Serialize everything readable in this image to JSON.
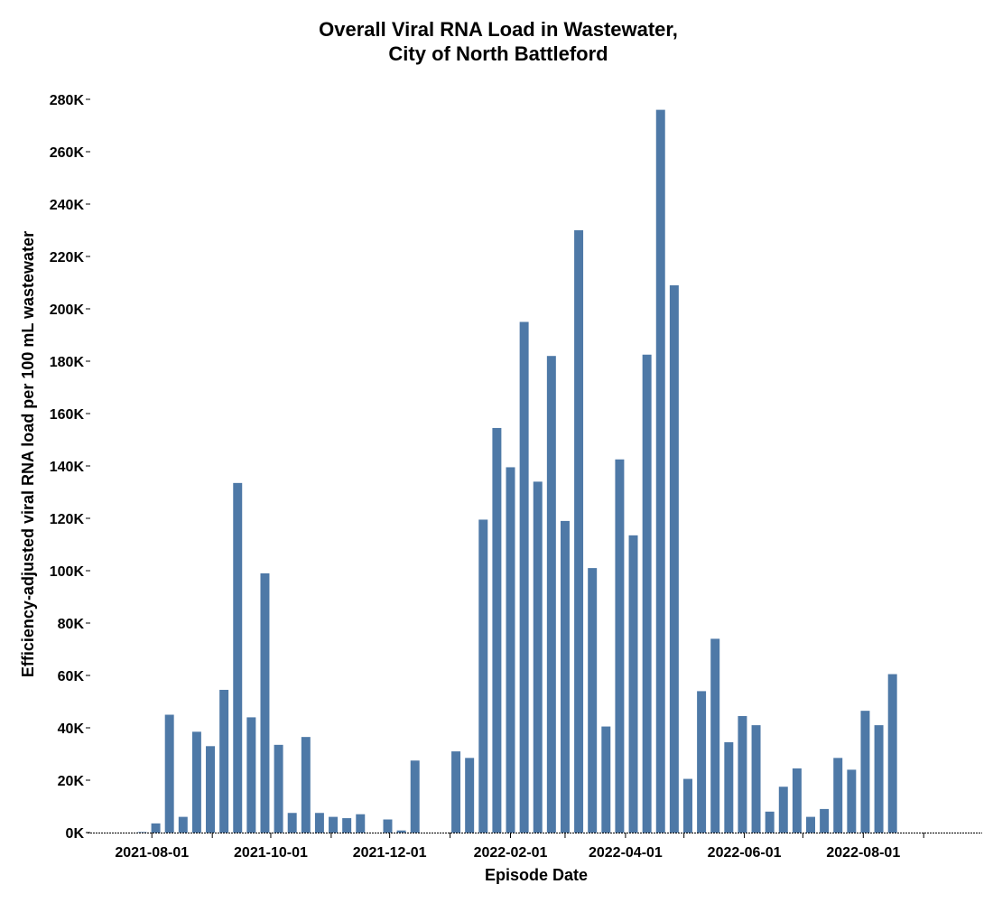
{
  "chart_data": {
    "type": "bar",
    "title": [
      "Overall Viral RNA Load in Wastewater,",
      "City of North Battleford"
    ],
    "xlabel": "Episode Date",
    "ylabel": "Efficiency-adjusted viral RNA load per 100 mL wastewater",
    "ylim": [
      0,
      280000
    ],
    "yticks": [
      {
        "value": 0,
        "label": "0K"
      },
      {
        "value": 20000,
        "label": "20K"
      },
      {
        "value": 40000,
        "label": "40K"
      },
      {
        "value": 60000,
        "label": "60K"
      },
      {
        "value": 80000,
        "label": "80K"
      },
      {
        "value": 100000,
        "label": "100K"
      },
      {
        "value": 120000,
        "label": "120K"
      },
      {
        "value": 140000,
        "label": "140K"
      },
      {
        "value": 160000,
        "label": "160K"
      },
      {
        "value": 180000,
        "label": "180K"
      },
      {
        "value": 200000,
        "label": "200K"
      },
      {
        "value": 220000,
        "label": "220K"
      },
      {
        "value": 240000,
        "label": "240K"
      },
      {
        "value": 260000,
        "label": "260K"
      },
      {
        "value": 280000,
        "label": "280K"
      }
    ],
    "xlim": [
      "2021-06-29",
      "2022-10-01"
    ],
    "xticks": [
      {
        "date": "2021-08-01",
        "label": "2021-08-01"
      },
      {
        "date": "2021-10-01",
        "label": "2021-10-01"
      },
      {
        "date": "2021-12-01",
        "label": "2021-12-01"
      },
      {
        "date": "2022-02-01",
        "label": "2022-02-01"
      },
      {
        "date": "2022-04-01",
        "label": "2022-04-01"
      },
      {
        "date": "2022-06-01",
        "label": "2022-06-01"
      },
      {
        "date": "2022-08-01",
        "label": "2022-08-01"
      }
    ],
    "x_minor_ticks": [
      "2021-09-01",
      "2021-11-01",
      "2022-01-01",
      "2022-03-01",
      "2022-05-01",
      "2022-07-01",
      "2022-09-01"
    ],
    "grid": false,
    "legend": "none",
    "colors": {
      "bar": "#4e79a7"
    },
    "x": [
      "2021-07-27",
      "2021-08-03",
      "2021-08-10",
      "2021-08-17",
      "2021-08-24",
      "2021-08-31",
      "2021-09-07",
      "2021-09-14",
      "2021-09-21",
      "2021-09-28",
      "2021-10-05",
      "2021-10-12",
      "2021-10-19",
      "2021-10-26",
      "2021-11-02",
      "2021-11-09",
      "2021-11-16",
      "2021-11-30",
      "2021-12-07",
      "2021-12-14",
      "2022-01-04",
      "2022-01-11",
      "2022-01-18",
      "2022-01-25",
      "2022-02-01",
      "2022-02-08",
      "2022-02-15",
      "2022-02-22",
      "2022-03-01",
      "2022-03-08",
      "2022-03-15",
      "2022-03-22",
      "2022-03-29",
      "2022-04-05",
      "2022-04-12",
      "2022-04-19",
      "2022-04-26",
      "2022-05-03",
      "2022-05-10",
      "2022-05-17",
      "2022-05-24",
      "2022-05-31",
      "2022-06-07",
      "2022-06-14",
      "2022-06-21",
      "2022-06-28",
      "2022-07-05",
      "2022-07-12",
      "2022-07-19",
      "2022-07-26",
      "2022-08-02",
      "2022-08-09",
      "2022-08-16",
      "2022-08-23"
    ],
    "values": [
      200,
      3500,
      45000,
      6000,
      38500,
      33000,
      54500,
      133500,
      44000,
      99000,
      33500,
      7500,
      36500,
      7500,
      6000,
      5500,
      7000,
      5000,
      800,
      27500,
      31000,
      28500,
      119500,
      154500,
      139500,
      195000,
      134000,
      182000,
      119000,
      230000,
      101000,
      40500,
      142500,
      113500,
      182500,
      276000,
      209000,
      20500,
      54000,
      74000,
      34500,
      44500,
      41000,
      8000,
      17500,
      24500,
      6000,
      9000,
      28500,
      24000,
      46500,
      41000,
      60500,
      0
    ]
  }
}
